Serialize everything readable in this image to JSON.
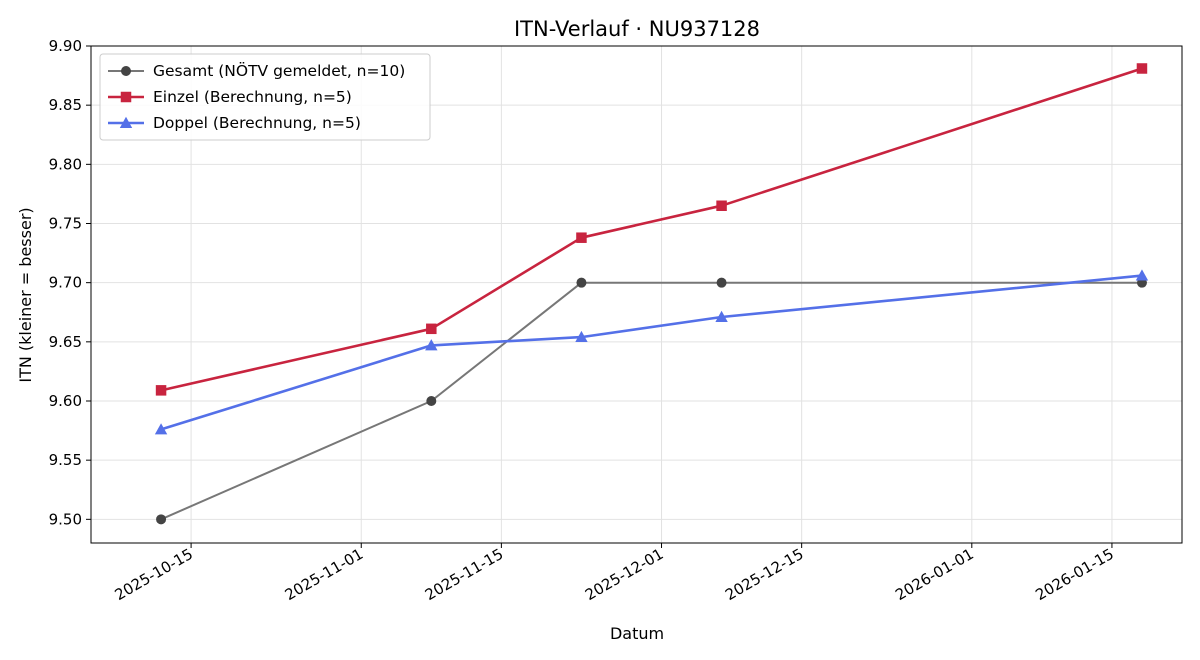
{
  "chart_data": {
    "type": "line",
    "title": "ITN-Verlauf · NU937128",
    "xlabel": "Datum",
    "ylabel": "ITN  (kleiner = besser)",
    "xlim": [
      "2025-10-05",
      "2026-01-22"
    ],
    "ylim": [
      9.48,
      9.9
    ],
    "x_ticks": [
      "2025-10-15",
      "2025-11-01",
      "2025-11-15",
      "2025-12-01",
      "2025-12-15",
      "2026-01-01",
      "2026-01-15"
    ],
    "y_ticks": [
      "9.50",
      "9.55",
      "9.60",
      "9.65",
      "9.70",
      "9.75",
      "9.80",
      "9.85",
      "9.90"
    ],
    "grid": true,
    "legend_position": "top-left",
    "series": [
      {
        "name": "Gesamt (NÖTV gemeldet, n=10)",
        "color": "#777777",
        "marker": "circle",
        "marker_color": "#444444",
        "points": [
          {
            "x": "2025-10-12",
            "y": 9.5
          },
          {
            "x": "2025-11-08",
            "y": 9.6
          },
          {
            "x": "2025-11-23",
            "y": 9.7
          },
          {
            "x": "2025-12-07",
            "y": 9.7
          },
          {
            "x": "2026-01-18",
            "y": 9.7
          }
        ]
      },
      {
        "name": "Einzel (Berechnung, n=5)",
        "color": "#c8243f",
        "marker": "square",
        "marker_color": "#c8243f",
        "points": [
          {
            "x": "2025-10-12",
            "y": 9.609
          },
          {
            "x": "2025-11-08",
            "y": 9.661
          },
          {
            "x": "2025-11-23",
            "y": 9.738
          },
          {
            "x": "2025-12-07",
            "y": 9.765
          },
          {
            "x": "2026-01-18",
            "y": 9.881
          }
        ]
      },
      {
        "name": "Doppel (Berechnung, n=5)",
        "color": "#5470e8",
        "marker": "triangle",
        "marker_color": "#5470e8",
        "points": [
          {
            "x": "2025-10-12",
            "y": 9.576
          },
          {
            "x": "2025-11-08",
            "y": 9.647
          },
          {
            "x": "2025-11-23",
            "y": 9.654
          },
          {
            "x": "2025-12-07",
            "y": 9.671
          },
          {
            "x": "2026-01-18",
            "y": 9.706
          }
        ]
      }
    ]
  }
}
